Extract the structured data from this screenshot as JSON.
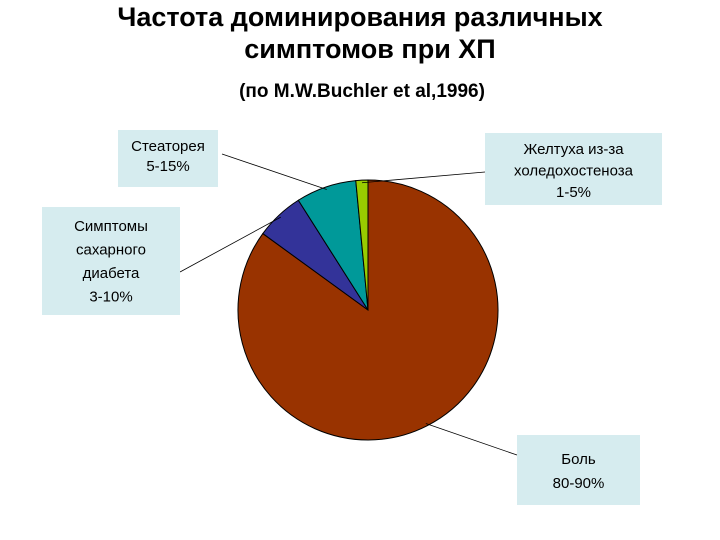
{
  "chart_data": {
    "type": "pie",
    "title": [
      "Частота доминирования различных",
      "симптомов при ХП"
    ],
    "subtitle": "(по M.W.Buchler et al,1996)",
    "categories": [
      [
        "Боль",
        "80-90%"
      ],
      [
        "Симптомы",
        "сахарного",
        "диабета",
        "3-10%"
      ],
      [
        "Стеаторея",
        "5-15%"
      ],
      [
        "Желтуха из-за",
        "холедохостеноза",
        "1-5%"
      ]
    ],
    "values": [
      85,
      6,
      7.5,
      1.5
    ],
    "colors": [
      "#993300",
      "#333399",
      "#009999",
      "#99cc00"
    ]
  }
}
